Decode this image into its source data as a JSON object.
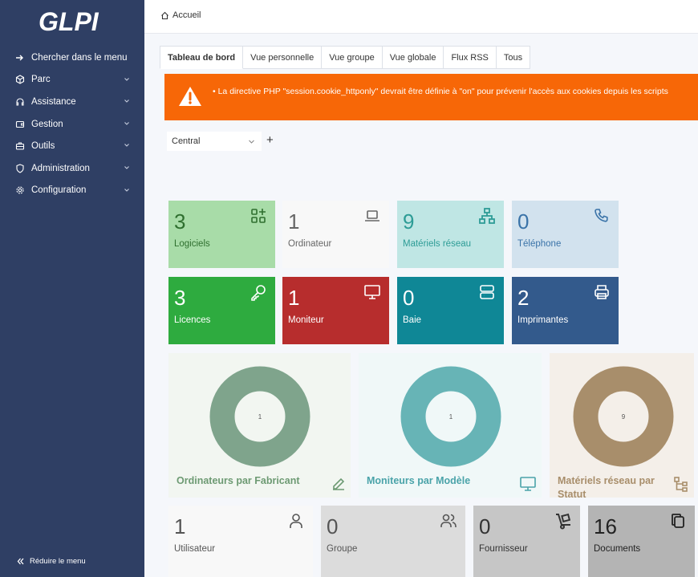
{
  "sidebar": {
    "items": [
      {
        "label": "Chercher dans le menu",
        "icon": "arrow-right-icon"
      },
      {
        "label": "Parc",
        "icon": "cube-icon"
      },
      {
        "label": "Assistance",
        "icon": "headset-icon"
      },
      {
        "label": "Gestion",
        "icon": "wallet-icon"
      },
      {
        "label": "Outils",
        "icon": "briefcase-icon"
      },
      {
        "label": "Administration",
        "icon": "shield-icon"
      },
      {
        "label": "Configuration",
        "icon": "gear-icon"
      }
    ],
    "reduce_label": "Réduire le menu"
  },
  "breadcrumb": {
    "home": "Accueil"
  },
  "tabs": [
    "Tableau de bord",
    "Vue personnelle",
    "Vue groupe",
    "Vue globale",
    "Flux RSS",
    "Tous"
  ],
  "warning": {
    "text": "• La directive PHP \"session.cookie_httponly\" devrait être définie à \"on\" pour prévenir l'accès aux cookies depuis les scripts"
  },
  "dashboard": {
    "selected": "Central",
    "add": "+"
  },
  "cards": [
    {
      "value": "3",
      "label": "Logiciels",
      "icon": "apps-plus-icon",
      "bg": "#a8dca8",
      "fg": "#2f6f2f"
    },
    {
      "value": "1",
      "label": "Ordinateur",
      "icon": "laptop-icon",
      "bg": "#f8f8f8",
      "fg": "#666666"
    },
    {
      "value": "9",
      "label": "Matériels réseau",
      "icon": "network-icon",
      "bg": "#bfe6e4",
      "fg": "#2d9c96"
    },
    {
      "value": "0",
      "label": "Téléphone",
      "icon": "phone-icon",
      "bg": "#d2e2ee",
      "fg": "#3a73a8"
    },
    {
      "value": "3",
      "label": "Licences",
      "icon": "key-icon",
      "bg": "#2eab3f",
      "fg": "#ffffff"
    },
    {
      "value": "1",
      "label": "Moniteur",
      "icon": "monitor-icon",
      "bg": "#b72d2d",
      "fg": "#ffffff"
    },
    {
      "value": "0",
      "label": "Baie",
      "icon": "server-icon",
      "bg": "#0f8796",
      "fg": "#ffffff"
    },
    {
      "value": "2",
      "label": "Imprimantes",
      "icon": "printer-icon",
      "bg": "#335a8c",
      "fg": "#ffffff"
    }
  ],
  "pies": [
    {
      "title": "Ordinateurs par Fabricant",
      "center": "1",
      "color": "#7fa48c",
      "bg": "#f2f6f1",
      "title_color": "#6d9a73",
      "icon": "edit-icon"
    },
    {
      "title": "Moniteurs par Modèle",
      "center": "1",
      "color": "#67b4b6",
      "bg": "#f0f8f8",
      "title_color": "#4aa3a9",
      "icon": "monitor-icon"
    },
    {
      "title": "Matériels réseau par Statut",
      "center": "9",
      "color": "#a88e6b",
      "bg": "#f4efe9",
      "title_color": "#a88e6b",
      "icon": "hierarchy-icon"
    }
  ],
  "bottom_cards": [
    {
      "value": "1",
      "label": "Utilisateur",
      "icon": "user-icon",
      "bg": "#f8f8f8"
    },
    {
      "value": "0",
      "label": "Groupe",
      "icon": "users-icon",
      "bg": "#dcdcdc"
    },
    {
      "value": "0",
      "label": "Fournisseur",
      "icon": "dolly-icon",
      "bg": "#c6c6c6"
    },
    {
      "value": "16",
      "label": "Documents",
      "icon": "copy-icon",
      "bg": "#b4b4b4"
    }
  ]
}
